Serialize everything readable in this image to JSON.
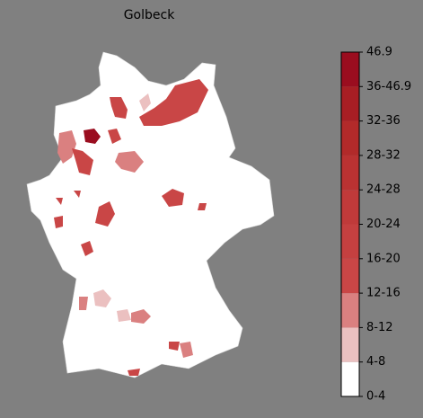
{
  "title": "Golbeck",
  "colorbar": {
    "labels": [
      "0-4",
      "4-8",
      "8-12",
      "12-16",
      "16-20",
      "20-24",
      "24-28",
      "28-32",
      "32-36",
      "36-46.9",
      "46.9"
    ],
    "colors": [
      "#ffffff",
      "#ebc0c0",
      "#da8080",
      "#c94646",
      "#c54040",
      "#c03a3a",
      "#ba3232",
      "#b22a2a",
      "#a81e24",
      "#9a0d1f"
    ]
  }
}
